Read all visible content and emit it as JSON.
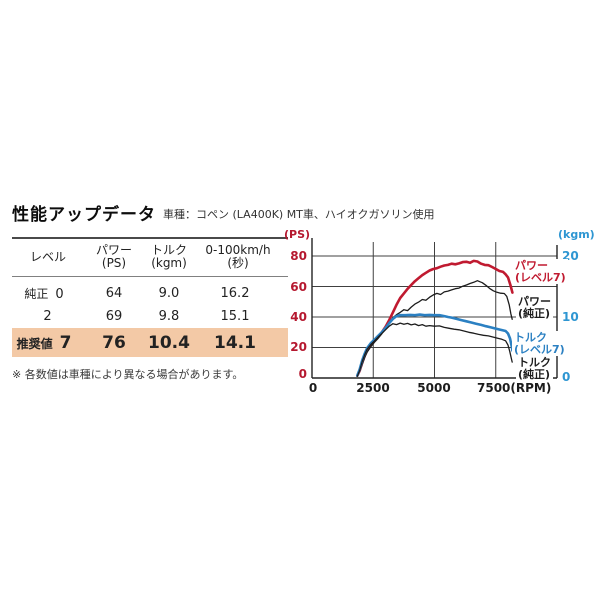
{
  "header": {
    "title": "性能アップデータ",
    "subtitle": "車種：コペン (LA400K) MT車、ハイオクガソリン使用"
  },
  "table": {
    "headers": [
      {
        "line1": "レベル",
        "line2": ""
      },
      {
        "line1": "パワー",
        "line2": "(PS)"
      },
      {
        "line1": "トルク",
        "line2": "(kgm)"
      },
      {
        "line1": "0-100km/h",
        "line2": "(秒)"
      }
    ],
    "rows": [
      {
        "label": "純正",
        "level": "0",
        "power": "64",
        "torque": "9.0",
        "accel": "16.2",
        "highlight": false
      },
      {
        "label": "",
        "level": "2",
        "power": "69",
        "torque": "9.8",
        "accel": "15.1",
        "highlight": false
      },
      {
        "label": "推奨値",
        "level": "7",
        "power": "76",
        "torque": "10.4",
        "accel": "14.1",
        "highlight": true
      }
    ],
    "note": "※ 各数値は車種により異なる場合があります。"
  },
  "colors": {
    "accent_red": "#b5182f",
    "accent_blue": "#2e96d2",
    "curve_red": "#c01a30",
    "curve_blue": "#2b80c2",
    "curve_black": "#1c1c1c",
    "highlight_row_bg": "#f3c9a6",
    "grid": "#404040"
  },
  "chart_data": {
    "type": "line",
    "title": "",
    "grid": true,
    "grid_color": "#404040",
    "legend_position": "right-overlay",
    "x_axis": {
      "label": "(RPM)",
      "ticks": [
        0,
        2500,
        5000,
        7500
      ],
      "max": 10000
    },
    "left_axis": {
      "label": "(PS)",
      "ticks": [
        0,
        20,
        40,
        60,
        80
      ],
      "max": 90,
      "color": "#b5182f"
    },
    "right_axis": {
      "label": "(kgm)",
      "ticks": [
        0,
        10,
        20
      ],
      "max": 22.5,
      "color": "#2e96d2"
    },
    "series": [
      {
        "name": "パワー(レベル7)",
        "legend_lines": [
          "パワー",
          "(レベル7)"
        ],
        "unit": "PS",
        "axis": "left",
        "color": "#c01a30",
        "width": 2.6,
        "points": [
          [
            1850,
            1.5
          ],
          [
            1950,
            5
          ],
          [
            2050,
            10
          ],
          [
            2150,
            14.5
          ],
          [
            2250,
            18
          ],
          [
            2400,
            21.5
          ],
          [
            2550,
            24.5
          ],
          [
            2700,
            27
          ],
          [
            2850,
            30
          ],
          [
            3000,
            33.5
          ],
          [
            3150,
            38
          ],
          [
            3300,
            43
          ],
          [
            3450,
            48
          ],
          [
            3600,
            52.5
          ],
          [
            3750,
            55.5
          ],
          [
            3900,
            58.5
          ],
          [
            4050,
            61
          ],
          [
            4200,
            63.5
          ],
          [
            4350,
            65.5
          ],
          [
            4500,
            67.5
          ],
          [
            4650,
            69
          ],
          [
            4800,
            70.5
          ],
          [
            4950,
            71.5
          ],
          [
            5100,
            72
          ],
          [
            5250,
            73
          ],
          [
            5400,
            73.8
          ],
          [
            5550,
            74.2
          ],
          [
            5700,
            75
          ],
          [
            5850,
            74.6
          ],
          [
            6000,
            75.2
          ],
          [
            6150,
            76
          ],
          [
            6300,
            76.2
          ],
          [
            6450,
            75.6
          ],
          [
            6600,
            76.8
          ],
          [
            6750,
            76.4
          ],
          [
            6900,
            75
          ],
          [
            7050,
            74.2
          ],
          [
            7200,
            74
          ],
          [
            7350,
            72.8
          ],
          [
            7500,
            71.5
          ],
          [
            7650,
            70.2
          ],
          [
            7800,
            69.6
          ],
          [
            7900,
            68
          ],
          [
            8000,
            66
          ],
          [
            8100,
            61
          ],
          [
            8180,
            56
          ]
        ]
      },
      {
        "name": "パワー(純正)",
        "legend_lines": [
          "パワー",
          "(純正)"
        ],
        "unit": "PS",
        "axis": "left",
        "color": "#1c1c1c",
        "width": 1.3,
        "points": [
          [
            1850,
            1
          ],
          [
            1950,
            4.5
          ],
          [
            2050,
            9
          ],
          [
            2150,
            13.5
          ],
          [
            2250,
            17
          ],
          [
            2400,
            20.5
          ],
          [
            2550,
            23.5
          ],
          [
            2700,
            26
          ],
          [
            2850,
            29
          ],
          [
            3000,
            32.5
          ],
          [
            3150,
            36
          ],
          [
            3300,
            39.5
          ],
          [
            3450,
            41.5
          ],
          [
            3600,
            43
          ],
          [
            3750,
            44.8
          ],
          [
            3900,
            44.2
          ],
          [
            4050,
            46.5
          ],
          [
            4200,
            48.5
          ],
          [
            4350,
            49.8
          ],
          [
            4500,
            51.5
          ],
          [
            4650,
            51
          ],
          [
            4800,
            53
          ],
          [
            4950,
            54.5
          ],
          [
            5100,
            55.5
          ],
          [
            5250,
            54.8
          ],
          [
            5400,
            56.5
          ],
          [
            5550,
            57
          ],
          [
            5700,
            57.8
          ],
          [
            5850,
            58.6
          ],
          [
            6000,
            59
          ],
          [
            6150,
            60.2
          ],
          [
            6300,
            61
          ],
          [
            6450,
            62
          ],
          [
            6600,
            62.8
          ],
          [
            6750,
            63.8
          ],
          [
            6850,
            63.2
          ],
          [
            6950,
            62.5
          ],
          [
            7100,
            60.8
          ],
          [
            7250,
            58.8
          ],
          [
            7400,
            57.2
          ],
          [
            7550,
            56.2
          ],
          [
            7700,
            55.6
          ],
          [
            7850,
            55.4
          ],
          [
            7950,
            53.5
          ],
          [
            8050,
            48
          ],
          [
            8120,
            42
          ],
          [
            8170,
            38.5
          ]
        ]
      },
      {
        "name": "トルク(レベル7)",
        "legend_lines": [
          "トルク",
          "(レベル7)"
        ],
        "unit": "kgm",
        "axis": "right",
        "color": "#2b80c2",
        "width": 2.6,
        "points": [
          [
            1850,
            0.4
          ],
          [
            1950,
            1.5
          ],
          [
            2050,
            2.9
          ],
          [
            2150,
            4.0
          ],
          [
            2250,
            4.9
          ],
          [
            2400,
            5.7
          ],
          [
            2550,
            6.3
          ],
          [
            2700,
            6.9
          ],
          [
            2850,
            7.5
          ],
          [
            3000,
            8.2
          ],
          [
            3150,
            9.0
          ],
          [
            3300,
            9.7
          ],
          [
            3450,
            10.15
          ],
          [
            3600,
            10.3
          ],
          [
            3800,
            10.3
          ],
          [
            4000,
            10.35
          ],
          [
            4200,
            10.3
          ],
          [
            4400,
            10.4
          ],
          [
            4600,
            10.3
          ],
          [
            4800,
            10.35
          ],
          [
            5000,
            10.3
          ],
          [
            5200,
            10.3
          ],
          [
            5400,
            10.15
          ],
          [
            5550,
            10.0
          ],
          [
            5700,
            9.9
          ],
          [
            5900,
            9.7
          ],
          [
            6100,
            9.5
          ],
          [
            6300,
            9.3
          ],
          [
            6500,
            9.1
          ],
          [
            6700,
            8.9
          ],
          [
            6900,
            8.7
          ],
          [
            7100,
            8.5
          ],
          [
            7300,
            8.3
          ],
          [
            7500,
            8.1
          ],
          [
            7650,
            7.95
          ],
          [
            7800,
            7.8
          ],
          [
            7900,
            7.7
          ],
          [
            8000,
            7.3
          ],
          [
            8080,
            6.5
          ],
          [
            8150,
            5.2
          ],
          [
            8180,
            4.5
          ]
        ]
      },
      {
        "name": "トルク(純正)",
        "legend_lines": [
          "トルク",
          "(純正)"
        ],
        "unit": "kgm",
        "axis": "right",
        "color": "#1c1c1c",
        "width": 1.3,
        "points": [
          [
            1850,
            0.3
          ],
          [
            1950,
            1.3
          ],
          [
            2050,
            2.7
          ],
          [
            2150,
            3.8
          ],
          [
            2250,
            4.7
          ],
          [
            2400,
            5.5
          ],
          [
            2550,
            6.1
          ],
          [
            2700,
            6.7
          ],
          [
            2850,
            7.3
          ],
          [
            3000,
            7.9
          ],
          [
            3150,
            8.5
          ],
          [
            3300,
            8.9
          ],
          [
            3450,
            8.75
          ],
          [
            3600,
            9.0
          ],
          [
            3750,
            8.8
          ],
          [
            3900,
            8.95
          ],
          [
            4050,
            8.7
          ],
          [
            4200,
            8.85
          ],
          [
            4350,
            8.6
          ],
          [
            4500,
            8.75
          ],
          [
            4650,
            8.5
          ],
          [
            4800,
            8.6
          ],
          [
            5000,
            8.5
          ],
          [
            5200,
            8.55
          ],
          [
            5400,
            8.3
          ],
          [
            5600,
            8.15
          ],
          [
            5800,
            8.0
          ],
          [
            6000,
            7.9
          ],
          [
            6200,
            7.7
          ],
          [
            6400,
            7.5
          ],
          [
            6600,
            7.35
          ],
          [
            6800,
            7.15
          ],
          [
            7000,
            7.0
          ],
          [
            7200,
            6.9
          ],
          [
            7400,
            6.7
          ],
          [
            7600,
            6.5
          ],
          [
            7750,
            6.35
          ],
          [
            7900,
            6.1
          ],
          [
            8000,
            5.4
          ],
          [
            8070,
            4.4
          ],
          [
            8130,
            3.3
          ],
          [
            8170,
            2.6
          ]
        ]
      }
    ]
  }
}
